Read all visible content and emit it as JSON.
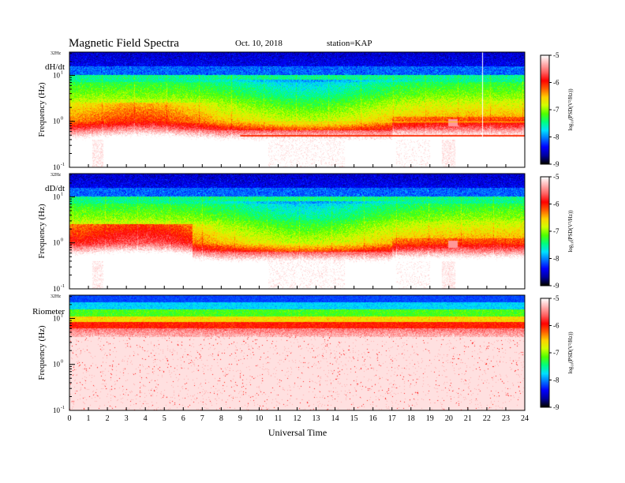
{
  "header": {
    "title": "Magnetic  Field  Spectra",
    "date": "Oct. 10, 2018",
    "station": "station=KAP"
  },
  "chart_data": {
    "type": "heatmap",
    "x_axis": {
      "label": "Universal Time",
      "range": [
        0,
        24
      ],
      "ticks": [
        "0",
        "1",
        "2",
        "3",
        "4",
        "5",
        "6",
        "7",
        "8",
        "9",
        "10",
        "11",
        "12",
        "13",
        "14",
        "15",
        "16",
        "17",
        "18",
        "19",
        "20",
        "21",
        "22",
        "23",
        "24"
      ]
    },
    "y_axis": {
      "label": "Frequency  (Hz)",
      "scale": "log",
      "range": [
        0.1,
        32
      ],
      "top_label": "32Hz",
      "ticks": [
        {
          "value": 10,
          "base": "10",
          "exp": "1"
        },
        {
          "value": 1,
          "base": "10",
          "exp": "0"
        },
        {
          "value": 0.1,
          "base": "10",
          "exp": "-1"
        }
      ]
    },
    "panels": [
      {
        "name": "dH/dt",
        "kind": "magnetometer",
        "seed": 11
      },
      {
        "name": "dD/dt",
        "kind": "magnetometer",
        "seed": 29
      },
      {
        "name": "Riometer",
        "kind": "riometer",
        "seed": 47
      }
    ],
    "colorbar": {
      "label": "log₁₀(PSD(V²/Hz))",
      "range": [
        -9,
        -5
      ],
      "ticks": [
        "-5",
        "-6",
        "-7",
        "-8",
        "-9"
      ],
      "colors": [
        "#000000",
        "#0000a0",
        "#0000ff",
        "#0070ff",
        "#00e0ff",
        "#00ff80",
        "#50ff00",
        "#d0ff00",
        "#ffd000",
        "#ff6000",
        "#ff0000",
        "#ff6060",
        "#ffb0b0",
        "#ffffff"
      ]
    }
  }
}
